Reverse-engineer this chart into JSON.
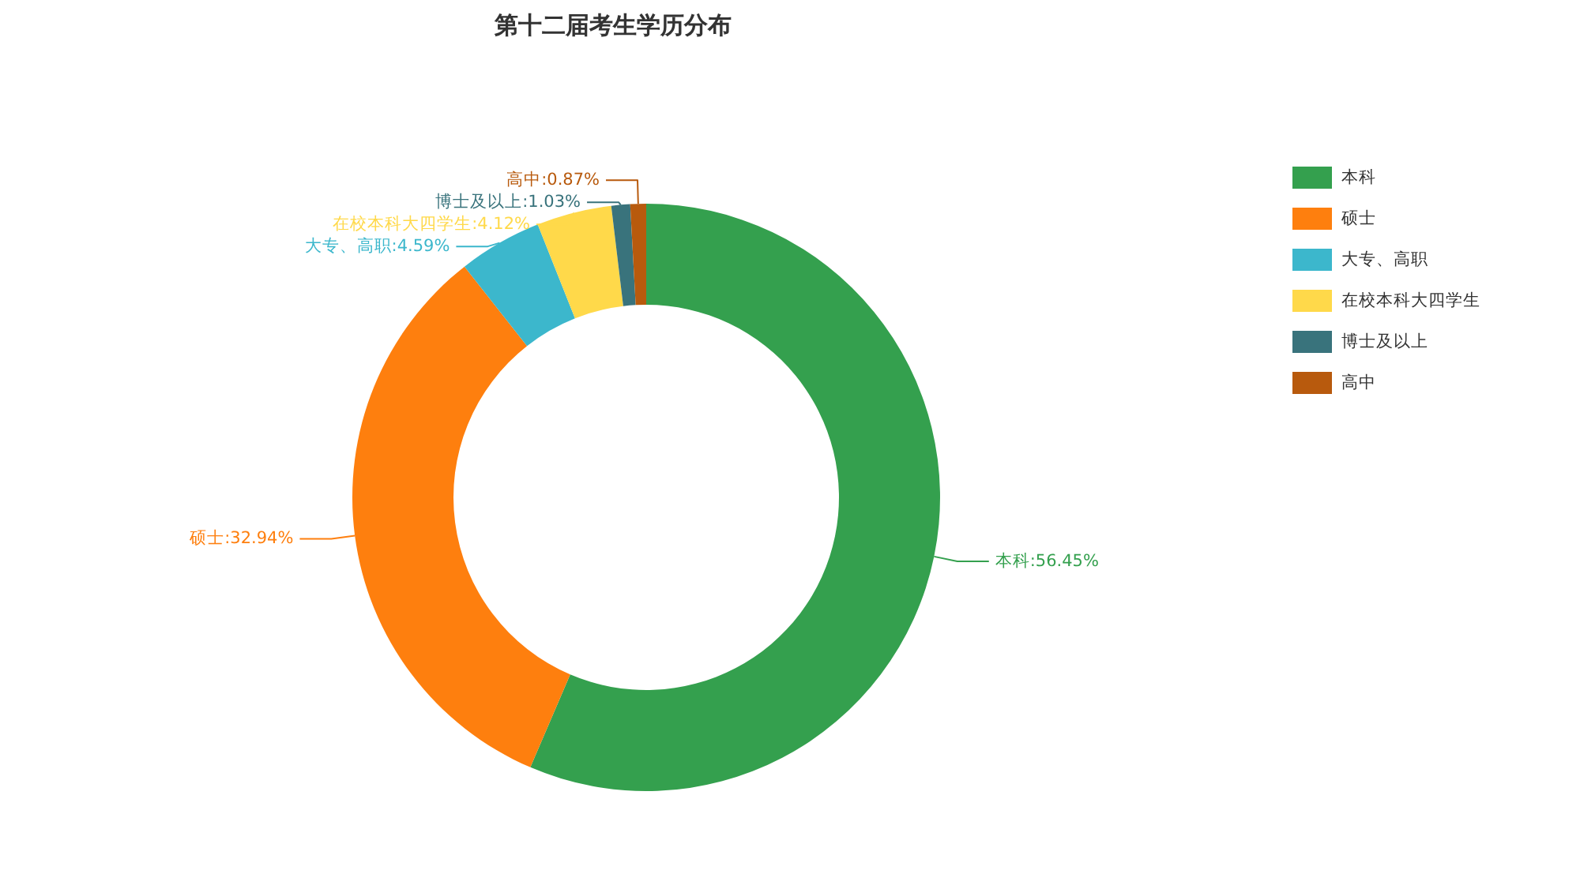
{
  "chart_data": {
    "type": "donut",
    "title": "第十二届考生学历分布",
    "categories": [
      "本科",
      "硕士",
      "大专、高职",
      "在校本科大四学生",
      "博士及以上",
      "高中"
    ],
    "values": [
      56.45,
      32.94,
      4.59,
      4.12,
      1.03,
      0.87
    ],
    "colors": [
      "#34a04e",
      "#fe7f0e",
      "#3cb7cc",
      "#ffd94a",
      "#39737c",
      "#b85a0d"
    ],
    "value_labels": [
      "本科:56.45%",
      "硕士:32.94%",
      "大专、高职:4.59%",
      "在校本科大四学生:4.12%",
      "博士及以上:1.03%",
      "高中:0.87%"
    ],
    "legend": "top right"
  }
}
